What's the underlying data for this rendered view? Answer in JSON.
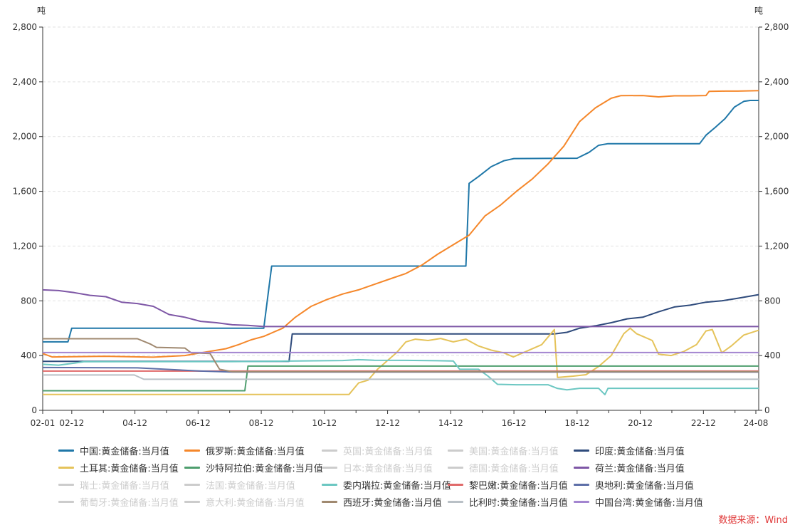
{
  "unit_label": "吨",
  "source": "数据来源：Wind",
  "chart_data": {
    "type": "line",
    "ylim": [
      0,
      2800
    ],
    "yticks": [
      0,
      400,
      800,
      1200,
      1600,
      2000,
      2400,
      2800
    ],
    "ytick_labels": [
      "0",
      "400",
      "800",
      "1,200",
      "1,600",
      "2,000",
      "2,400",
      "2,800"
    ],
    "xlim": [
      2002.0,
      2024.67
    ],
    "xticks": [
      2002.0,
      2002.92,
      2004.92,
      2006.92,
      2008.92,
      2010.92,
      2012.92,
      2014.92,
      2016.92,
      2018.92,
      2020.92,
      2022.92,
      2024.58
    ],
    "xtick_labels": [
      "02-01",
      "02-12",
      "04-12",
      "06-12",
      "08-12",
      "10-12",
      "12-12",
      "14-12",
      "16-12",
      "18-12",
      "20-12",
      "22-12",
      "24-08"
    ],
    "grid": true,
    "legend_position": "bottom",
    "series": [
      {
        "name": "中国:黄金储备:当月值",
        "color": "#1f77a8",
        "visible": true,
        "points": [
          [
            2002.0,
            500
          ],
          [
            2002.8,
            500
          ],
          [
            2002.92,
            600
          ],
          [
            2009.0,
            600
          ],
          [
            2009.25,
            1054
          ],
          [
            2015.4,
            1054
          ],
          [
            2015.5,
            1658
          ],
          [
            2015.8,
            1708
          ],
          [
            2016.2,
            1780
          ],
          [
            2016.6,
            1823
          ],
          [
            2016.92,
            1839
          ],
          [
            2018.92,
            1842
          ],
          [
            2019.3,
            1885
          ],
          [
            2019.6,
            1936
          ],
          [
            2019.9,
            1948
          ],
          [
            2022.8,
            1948
          ],
          [
            2023.0,
            2010
          ],
          [
            2023.3,
            2068
          ],
          [
            2023.6,
            2130
          ],
          [
            2023.9,
            2215
          ],
          [
            2024.2,
            2257
          ],
          [
            2024.4,
            2264
          ],
          [
            2024.67,
            2264
          ]
        ]
      },
      {
        "name": "俄罗斯:黄金储备:当月值",
        "color": "#f5872a",
        "visible": true,
        "points": [
          [
            2002.0,
            415
          ],
          [
            2002.3,
            390
          ],
          [
            2004.0,
            395
          ],
          [
            2005.5,
            388
          ],
          [
            2006.5,
            400
          ],
          [
            2007.0,
            420
          ],
          [
            2007.8,
            450
          ],
          [
            2008.2,
            480
          ],
          [
            2008.6,
            515
          ],
          [
            2009.0,
            540
          ],
          [
            2009.6,
            600
          ],
          [
            2010.0,
            680
          ],
          [
            2010.5,
            760
          ],
          [
            2011.0,
            810
          ],
          [
            2011.5,
            850
          ],
          [
            2012.0,
            880
          ],
          [
            2012.5,
            920
          ],
          [
            2013.0,
            960
          ],
          [
            2013.5,
            1000
          ],
          [
            2014.0,
            1060
          ],
          [
            2014.5,
            1140
          ],
          [
            2015.0,
            1210
          ],
          [
            2015.5,
            1280
          ],
          [
            2016.0,
            1420
          ],
          [
            2016.5,
            1500
          ],
          [
            2017.0,
            1600
          ],
          [
            2017.5,
            1690
          ],
          [
            2018.0,
            1800
          ],
          [
            2018.5,
            1930
          ],
          [
            2019.0,
            2110
          ],
          [
            2019.5,
            2210
          ],
          [
            2020.0,
            2280
          ],
          [
            2020.3,
            2299
          ],
          [
            2021.0,
            2300
          ],
          [
            2021.5,
            2290
          ],
          [
            2022.0,
            2298
          ],
          [
            2022.5,
            2298
          ],
          [
            2023.0,
            2300
          ],
          [
            2023.1,
            2330
          ],
          [
            2023.6,
            2332
          ],
          [
            2024.0,
            2332
          ],
          [
            2024.67,
            2335
          ]
        ]
      },
      {
        "name": "英国:黄金储备:当月值",
        "color": "#cccccc",
        "visible": false,
        "points": []
      },
      {
        "name": "美国:黄金储备:当月值",
        "color": "#cccccc",
        "visible": false,
        "points": []
      },
      {
        "name": "印度:黄金储备:当月值",
        "color": "#2f4b7c",
        "visible": true,
        "points": [
          [
            2002.0,
            358
          ],
          [
            2009.8,
            358
          ],
          [
            2009.9,
            558
          ],
          [
            2018.2,
            558
          ],
          [
            2018.6,
            570
          ],
          [
            2019.0,
            600
          ],
          [
            2019.5,
            618
          ],
          [
            2020.0,
            640
          ],
          [
            2020.5,
            668
          ],
          [
            2021.0,
            680
          ],
          [
            2021.5,
            720
          ],
          [
            2022.0,
            755
          ],
          [
            2022.5,
            768
          ],
          [
            2023.0,
            790
          ],
          [
            2023.5,
            800
          ],
          [
            2024.0,
            818
          ],
          [
            2024.67,
            845
          ]
        ]
      },
      {
        "name": "土耳其:黄金储备:当月值",
        "color": "#e5c35a",
        "visible": true,
        "points": [
          [
            2002.0,
            116
          ],
          [
            2011.7,
            116
          ],
          [
            2012.0,
            200
          ],
          [
            2012.3,
            220
          ],
          [
            2012.6,
            300
          ],
          [
            2012.9,
            360
          ],
          [
            2013.2,
            420
          ],
          [
            2013.5,
            500
          ],
          [
            2013.8,
            520
          ],
          [
            2014.2,
            510
          ],
          [
            2014.6,
            525
          ],
          [
            2015.0,
            500
          ],
          [
            2015.4,
            520
          ],
          [
            2015.8,
            470
          ],
          [
            2016.2,
            440
          ],
          [
            2016.6,
            420
          ],
          [
            2016.9,
            390
          ],
          [
            2017.3,
            430
          ],
          [
            2017.8,
            480
          ],
          [
            2018.2,
            590
          ],
          [
            2018.3,
            240
          ],
          [
            2018.8,
            250
          ],
          [
            2019.2,
            260
          ],
          [
            2019.6,
            320
          ],
          [
            2020.0,
            400
          ],
          [
            2020.4,
            560
          ],
          [
            2020.6,
            600
          ],
          [
            2020.8,
            560
          ],
          [
            2021.0,
            540
          ],
          [
            2021.3,
            510
          ],
          [
            2021.5,
            410
          ],
          [
            2021.9,
            400
          ],
          [
            2022.3,
            430
          ],
          [
            2022.7,
            480
          ],
          [
            2023.0,
            580
          ],
          [
            2023.2,
            590
          ],
          [
            2023.5,
            420
          ],
          [
            2023.8,
            470
          ],
          [
            2024.2,
            550
          ],
          [
            2024.67,
            585
          ]
        ]
      },
      {
        "name": "沙特阿拉伯:黄金储备:当月值",
        "color": "#4e9e6e",
        "visible": true,
        "points": [
          [
            2002.0,
            143
          ],
          [
            2008.4,
            143
          ],
          [
            2008.5,
            323
          ],
          [
            2024.67,
            323
          ]
        ]
      },
      {
        "name": "日本:黄金储备:当月值",
        "color": "#cccccc",
        "visible": false,
        "points": []
      },
      {
        "name": "德国:黄金储备:当月值",
        "color": "#cccccc",
        "visible": false,
        "points": []
      },
      {
        "name": "荷兰:黄金储备:当月值",
        "color": "#7e57a6",
        "visible": true,
        "points": [
          [
            2002.0,
            880
          ],
          [
            2002.5,
            875
          ],
          [
            2003.0,
            860
          ],
          [
            2003.5,
            840
          ],
          [
            2004.0,
            830
          ],
          [
            2004.5,
            790
          ],
          [
            2005.0,
            780
          ],
          [
            2005.5,
            760
          ],
          [
            2006.0,
            700
          ],
          [
            2006.5,
            680
          ],
          [
            2007.0,
            650
          ],
          [
            2007.5,
            640
          ],
          [
            2008.0,
            625
          ],
          [
            2008.5,
            621
          ],
          [
            2009.0,
            612
          ],
          [
            2010.0,
            612
          ],
          [
            2024.67,
            612
          ]
        ]
      },
      {
        "name": "瑞士:黄金储备:当月值",
        "color": "#cccccc",
        "visible": false,
        "points": []
      },
      {
        "name": "法国:黄金储备:当月值",
        "color": "#cccccc",
        "visible": false,
        "points": []
      },
      {
        "name": "委内瑞拉:黄金储备:当月值",
        "color": "#6cc7c2",
        "visible": true,
        "points": [
          [
            2002.0,
            336
          ],
          [
            2002.5,
            330
          ],
          [
            2003.0,
            345
          ],
          [
            2003.3,
            355
          ],
          [
            2008.0,
            356
          ],
          [
            2009.0,
            358
          ],
          [
            2010.0,
            360
          ],
          [
            2011.5,
            364
          ],
          [
            2012.0,
            370
          ],
          [
            2012.5,
            366
          ],
          [
            2013.5,
            365
          ],
          [
            2014.5,
            362
          ],
          [
            2015.0,
            360
          ],
          [
            2015.2,
            300
          ],
          [
            2015.8,
            300
          ],
          [
            2016.1,
            250
          ],
          [
            2016.4,
            190
          ],
          [
            2017.0,
            187
          ],
          [
            2017.5,
            187
          ],
          [
            2018.0,
            187
          ],
          [
            2018.3,
            160
          ],
          [
            2018.6,
            150
          ],
          [
            2019.0,
            161
          ],
          [
            2019.6,
            161
          ],
          [
            2019.8,
            115
          ],
          [
            2019.9,
            161
          ],
          [
            2024.67,
            161
          ]
        ]
      },
      {
        "name": "黎巴嫩:黄金储备:当月值",
        "color": "#e06a6a",
        "visible": true,
        "points": [
          [
            2002.0,
            287
          ],
          [
            2024.67,
            287
          ]
        ]
      },
      {
        "name": "奥地利:黄金储备:当月值",
        "color": "#5e6fa8",
        "visible": true,
        "points": [
          [
            2002.0,
            313
          ],
          [
            2005.0,
            310
          ],
          [
            2007.0,
            287
          ],
          [
            2008.0,
            280
          ],
          [
            2024.67,
            280
          ]
        ]
      },
      {
        "name": "葡萄牙:黄金储备:当月值",
        "color": "#cccccc",
        "visible": false,
        "points": []
      },
      {
        "name": "意大利:黄金储备:当月值",
        "color": "#cccccc",
        "visible": false,
        "points": []
      },
      {
        "name": "西班牙:黄金储备:当月值",
        "color": "#a08970",
        "visible": true,
        "points": [
          [
            2002.0,
            523
          ],
          [
            2005.0,
            523
          ],
          [
            2005.4,
            485
          ],
          [
            2005.6,
            460
          ],
          [
            2006.5,
            455
          ],
          [
            2006.7,
            420
          ],
          [
            2007.3,
            415
          ],
          [
            2007.6,
            300
          ],
          [
            2008.0,
            282
          ],
          [
            2024.67,
            282
          ]
        ]
      },
      {
        "name": "比利时:黄金储备:当月值",
        "color": "#b9c0c6",
        "visible": true,
        "points": [
          [
            2002.0,
            258
          ],
          [
            2004.9,
            258
          ],
          [
            2005.2,
            227
          ],
          [
            2024.67,
            227
          ]
        ]
      },
      {
        "name": "中国台湾:黄金储备:当月值",
        "color": "#a385d0",
        "visible": true,
        "points": [
          [
            2002.0,
            422
          ],
          [
            2024.67,
            422
          ]
        ]
      }
    ]
  }
}
